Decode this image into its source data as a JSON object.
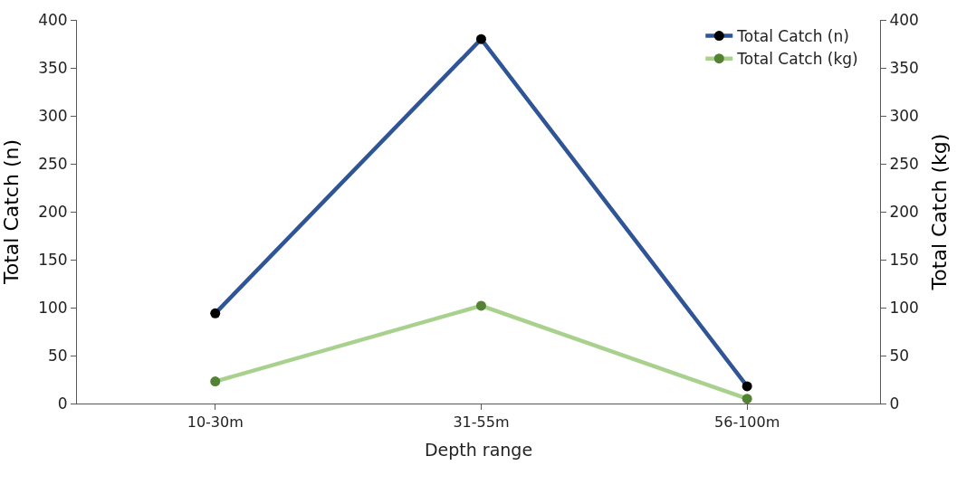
{
  "chart_data": {
    "type": "line",
    "xlabel": "Depth range",
    "ylabel": "Total Catch (n)",
    "y2label": "Total Catch (kg)",
    "categories": [
      "10-30m",
      "31-55m",
      "56-100m"
    ],
    "series": [
      {
        "name": "Total Catch (n)",
        "color": "#2f5597",
        "colors": [
          "#000000",
          "#000000",
          "#000000"
        ],
        "values": [
          94,
          380,
          18
        ]
      },
      {
        "name": "Total Catch (kg)",
        "color": "#a9d18e",
        "colors": [
          "#548235",
          "#548235",
          "#548235"
        ],
        "values": [
          23,
          102,
          5
        ],
        "axis": "y2"
      }
    ],
    "ylim": [
      0,
      400
    ],
    "yticks": [
      0,
      50,
      100,
      150,
      200,
      250,
      300,
      350,
      400
    ],
    "y2lim": [
      0,
      400
    ],
    "y2ticks": [
      0,
      50,
      100,
      150,
      200,
      250,
      300,
      350,
      400
    ],
    "legend": "top right",
    "marker": "circle",
    "line_style": "solid"
  }
}
